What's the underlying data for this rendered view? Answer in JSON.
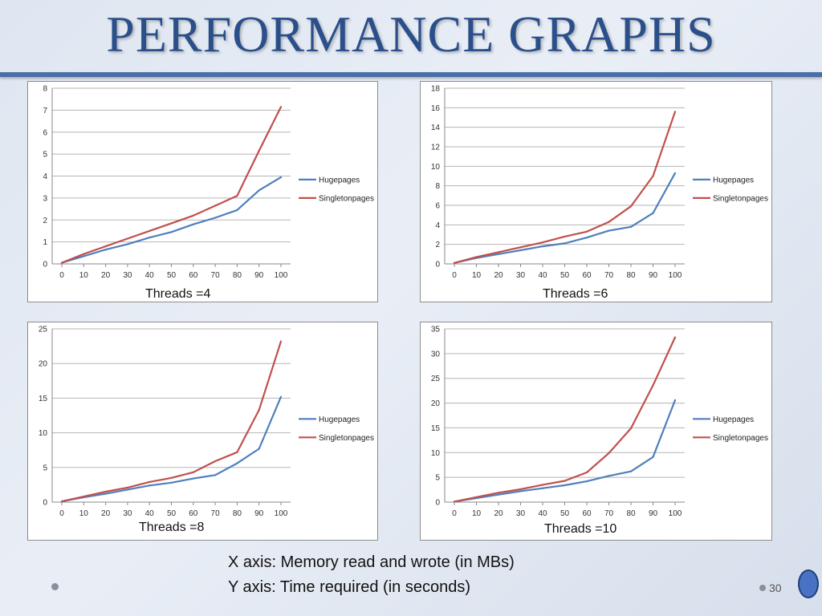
{
  "slide": {
    "title": "PERFORMANCE GRAPHS",
    "x_axis_note": "X axis: Memory read and wrote (in MBs)",
    "y_axis_note": "Y axis:  Time required (in seconds)",
    "page_number": "30"
  },
  "colors": {
    "hugepages": "#4f7fbd",
    "singletonpages": "#c0504d",
    "title": "#2b4f8a"
  },
  "chart_data": [
    {
      "type": "line",
      "caption": "Threads =4",
      "x": [
        0,
        10,
        20,
        30,
        40,
        50,
        60,
        70,
        80,
        90,
        100
      ],
      "x_ticks": [
        "0",
        "10",
        "20",
        "30",
        "40",
        "50",
        "60",
        "70",
        "80",
        "90",
        "100"
      ],
      "ylim": [
        0,
        8
      ],
      "y_ticks": [
        0,
        1,
        2,
        3,
        4,
        5,
        6,
        7,
        8
      ],
      "grid": true,
      "legend_position": "right",
      "series": [
        {
          "name": "Hugepages",
          "values": [
            0.05,
            0.35,
            0.65,
            0.9,
            1.2,
            1.45,
            1.8,
            2.1,
            2.45,
            3.35,
            3.95
          ]
        },
        {
          "name": "Singletonpages",
          "values": [
            0.05,
            0.45,
            0.8,
            1.15,
            1.5,
            1.85,
            2.2,
            2.65,
            3.1,
            5.15,
            7.15
          ]
        }
      ]
    },
    {
      "type": "line",
      "caption": "Threads =6",
      "x": [
        0,
        10,
        20,
        30,
        40,
        50,
        60,
        70,
        80,
        90,
        100
      ],
      "x_ticks": [
        "0",
        "10",
        "20",
        "30",
        "40",
        "50",
        "60",
        "70",
        "80",
        "90",
        "100"
      ],
      "ylim": [
        0,
        18
      ],
      "y_ticks": [
        0,
        2,
        4,
        6,
        8,
        10,
        12,
        14,
        16,
        18
      ],
      "grid": true,
      "legend_position": "right",
      "series": [
        {
          "name": "Hugepages",
          "values": [
            0.1,
            0.6,
            1.0,
            1.4,
            1.8,
            2.1,
            2.7,
            3.4,
            3.8,
            5.2,
            9.3
          ]
        },
        {
          "name": "Singletonpages",
          "values": [
            0.1,
            0.7,
            1.2,
            1.7,
            2.2,
            2.8,
            3.3,
            4.3,
            5.9,
            9.0,
            15.6
          ]
        }
      ]
    },
    {
      "type": "line",
      "caption": "Threads =8",
      "x": [
        0,
        10,
        20,
        30,
        40,
        50,
        60,
        70,
        80,
        90,
        100
      ],
      "x_ticks": [
        "0",
        "10",
        "20",
        "30",
        "40",
        "50",
        "60",
        "70",
        "80",
        "90",
        "100"
      ],
      "ylim": [
        0,
        25
      ],
      "y_ticks": [
        0,
        5,
        10,
        15,
        20,
        25
      ],
      "grid": true,
      "legend_position": "right",
      "series": [
        {
          "name": "Hugepages",
          "values": [
            0.1,
            0.7,
            1.2,
            1.8,
            2.4,
            2.8,
            3.4,
            3.9,
            5.6,
            7.7,
            15.2
          ]
        },
        {
          "name": "Singletonpages",
          "values": [
            0.1,
            0.8,
            1.5,
            2.1,
            2.9,
            3.5,
            4.3,
            5.9,
            7.2,
            13.3,
            23.2
          ]
        }
      ]
    },
    {
      "type": "line",
      "caption": "Threads =10",
      "x": [
        0,
        10,
        20,
        30,
        40,
        50,
        60,
        70,
        80,
        90,
        100
      ],
      "x_ticks": [
        "0",
        "10",
        "20",
        "30",
        "40",
        "50",
        "60",
        "70",
        "80",
        "90",
        "100"
      ],
      "ylim": [
        0,
        35
      ],
      "y_ticks": [
        0,
        5,
        10,
        15,
        20,
        25,
        30,
        35
      ],
      "grid": true,
      "legend_position": "right",
      "series": [
        {
          "name": "Hugepages",
          "values": [
            0.1,
            0.8,
            1.5,
            2.2,
            2.8,
            3.4,
            4.2,
            5.3,
            6.2,
            9.1,
            20.6
          ]
        },
        {
          "name": "Singletonpages",
          "values": [
            0.1,
            1.0,
            1.9,
            2.6,
            3.5,
            4.3,
            6.0,
            9.9,
            14.9,
            23.6,
            33.3
          ]
        }
      ]
    }
  ]
}
